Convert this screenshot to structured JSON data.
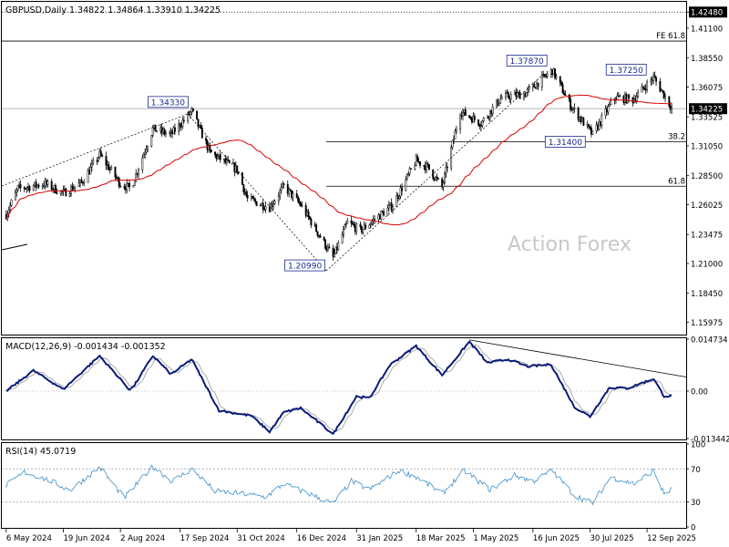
{
  "header": {
    "symbol_line": "GBPUSD,Daily  1.34822 1.34864 1.33910 1.34225"
  },
  "watermark": "Action Forex",
  "colors": {
    "candle": "#000000",
    "ma": "#d90000",
    "macd_main": "#0a1a78",
    "macd_signal": "#999999",
    "rsi": "#3d8fcc",
    "grid_dot": "#bbbbbb"
  },
  "chart_data": [
    {
      "type": "candlestick",
      "title": "GBPUSD,Daily",
      "ohlc_last": {
        "open": 1.34822,
        "high": 1.34864,
        "low": 1.3391,
        "close": 1.34225
      },
      "ylim": [
        1.15,
        1.432
      ],
      "y_ticks": [
        "1.42480",
        "1.41100",
        "1.38550",
        "1.36075",
        "1.33525",
        "1.31050",
        "1.28500",
        "1.26025",
        "1.23475",
        "1.21000",
        "1.18450",
        "1.15975"
      ],
      "current_price": "1.34225",
      "x_ticks": [
        "6 May 2024",
        "19 Jun 2024",
        "2 Aug 2024",
        "17 Sep 2024",
        "31 Oct 2024",
        "16 Dec 2024",
        "31 Jan 2025",
        "18 Mar 2025",
        "1 May 2025",
        "16 Jun 2025",
        "30 Jul 2025",
        "12 Sep 2025"
      ],
      "price_anchors": [
        {
          "date": "2024-05-06",
          "price": 1.252
        },
        {
          "date": "2024-05-15",
          "price": 1.274
        },
        {
          "date": "2024-06-05",
          "price": 1.278
        },
        {
          "date": "2024-06-19",
          "price": 1.27
        },
        {
          "date": "2024-07-03",
          "price": 1.279
        },
        {
          "date": "2024-07-17",
          "price": 1.303
        },
        {
          "date": "2024-08-02",
          "price": 1.278
        },
        {
          "date": "2024-08-10",
          "price": 1.274
        },
        {
          "date": "2024-08-27",
          "price": 1.325
        },
        {
          "date": "2024-09-10",
          "price": 1.32
        },
        {
          "date": "2024-09-26",
          "price": 1.34
        },
        {
          "date": "2024-10-10",
          "price": 1.305
        },
        {
          "date": "2024-10-31",
          "price": 1.29
        },
        {
          "date": "2024-11-08",
          "price": 1.265
        },
        {
          "date": "2024-11-25",
          "price": 1.258
        },
        {
          "date": "2024-12-06",
          "price": 1.276
        },
        {
          "date": "2024-12-19",
          "price": 1.26
        },
        {
          "date": "2025-01-13",
          "price": 1.215
        },
        {
          "date": "2025-01-24",
          "price": 1.245
        },
        {
          "date": "2025-02-03",
          "price": 1.238
        },
        {
          "date": "2025-02-28",
          "price": 1.26
        },
        {
          "date": "2025-03-18",
          "price": 1.298
        },
        {
          "date": "2025-03-27",
          "price": 1.292
        },
        {
          "date": "2025-04-07",
          "price": 1.275
        },
        {
          "date": "2025-04-21",
          "price": 1.34
        },
        {
          "date": "2025-05-07",
          "price": 1.33
        },
        {
          "date": "2025-05-23",
          "price": 1.352
        },
        {
          "date": "2025-06-10",
          "price": 1.355
        },
        {
          "date": "2025-07-01",
          "price": 1.375
        },
        {
          "date": "2025-07-15",
          "price": 1.345
        },
        {
          "date": "2025-08-01",
          "price": 1.32
        },
        {
          "date": "2025-08-18",
          "price": 1.352
        },
        {
          "date": "2025-09-01",
          "price": 1.35
        },
        {
          "date": "2025-09-17",
          "price": 1.369
        },
        {
          "date": "2025-10-01",
          "price": 1.343
        }
      ],
      "annotations": [
        {
          "label": "1.34330",
          "date": "2024-09-26",
          "price": 1.3433
        },
        {
          "label": "1.20990",
          "date": "2025-01-13",
          "price": 1.2099
        },
        {
          "label": "1.37870",
          "date": "2025-07-01",
          "price": 1.3787
        },
        {
          "label": "1.31400",
          "date": "2025-08-01",
          "price": 1.314
        },
        {
          "label": "1.37250",
          "date": "2025-09-17",
          "price": 1.3725
        }
      ],
      "horizontal_levels": [
        {
          "label": "",
          "price": 1.4248,
          "style": "dotted"
        },
        {
          "label": "FE 61.8",
          "price": 1.4,
          "style": "solid"
        },
        {
          "label": "38.2",
          "price": 1.314,
          "style": "solid"
        },
        {
          "label": "61.8",
          "price": 1.276,
          "style": "solid"
        }
      ],
      "ma_label": "",
      "watermark": "Action Forex"
    },
    {
      "type": "line",
      "title": "MACD(12,26,9) -0.001434 -0.001352",
      "ylim": [
        -0.01344,
        0.01473
      ],
      "y_ticks": [
        "0.014734",
        "0.00",
        "-0.013442"
      ],
      "current_value": "0.00",
      "series": [
        {
          "name": "MACD",
          "anchors": [
            {
              "date": "2024-05-06",
              "value": 0.0
            },
            {
              "date": "2024-05-27",
              "value": 0.0058
            },
            {
              "date": "2024-06-19",
              "value": 0.0005
            },
            {
              "date": "2024-07-17",
              "value": 0.01
            },
            {
              "date": "2024-08-10",
              "value": 0.0
            },
            {
              "date": "2024-08-27",
              "value": 0.01
            },
            {
              "date": "2024-09-10",
              "value": 0.0048
            },
            {
              "date": "2024-09-26",
              "value": 0.009
            },
            {
              "date": "2024-10-17",
              "value": -0.0055
            },
            {
              "date": "2024-11-11",
              "value": -0.007
            },
            {
              "date": "2024-11-25",
              "value": -0.0115
            },
            {
              "date": "2024-12-06",
              "value": -0.006
            },
            {
              "date": "2024-12-19",
              "value": -0.0048
            },
            {
              "date": "2025-01-13",
              "value": -0.0122
            },
            {
              "date": "2025-01-31",
              "value": -0.0015
            },
            {
              "date": "2025-02-10",
              "value": -0.002
            },
            {
              "date": "2025-02-26",
              "value": 0.0075
            },
            {
              "date": "2025-03-18",
              "value": 0.0128
            },
            {
              "date": "2025-04-07",
              "value": 0.0045
            },
            {
              "date": "2025-04-28",
              "value": 0.014
            },
            {
              "date": "2025-05-12",
              "value": 0.008
            },
            {
              "date": "2025-05-28",
              "value": 0.009
            },
            {
              "date": "2025-06-12",
              "value": 0.007
            },
            {
              "date": "2025-06-30",
              "value": 0.0075
            },
            {
              "date": "2025-07-18",
              "value": -0.0045
            },
            {
              "date": "2025-07-30",
              "value": -0.0072
            },
            {
              "date": "2025-08-14",
              "value": 0.001
            },
            {
              "date": "2025-08-28",
              "value": 0.0008
            },
            {
              "date": "2025-09-17",
              "value": 0.0035
            },
            {
              "date": "2025-09-25",
              "value": -0.0014
            },
            {
              "date": "2025-10-01",
              "value": -0.0014
            }
          ]
        },
        {
          "name": "Signal",
          "lag_days": 5
        }
      ],
      "trendline": {
        "start": {
          "date": "2025-04-28",
          "value": 0.0145
        },
        "end": {
          "date": "2025-10-04",
          "value": 0.004
        }
      }
    },
    {
      "type": "line",
      "title": "RSI(14) 45.0719",
      "ylim": [
        0,
        100
      ],
      "y_ticks": [
        "100",
        "70",
        "30",
        "0"
      ],
      "levels": [
        70,
        30
      ],
      "series": [
        {
          "name": "RSI",
          "anchors": [
            {
              "date": "2024-05-06",
              "value": 50
            },
            {
              "date": "2024-05-20",
              "value": 66
            },
            {
              "date": "2024-06-10",
              "value": 55
            },
            {
              "date": "2024-06-24",
              "value": 44
            },
            {
              "date": "2024-07-17",
              "value": 72
            },
            {
              "date": "2024-08-05",
              "value": 35
            },
            {
              "date": "2024-08-27",
              "value": 73
            },
            {
              "date": "2024-09-11",
              "value": 55
            },
            {
              "date": "2024-09-26",
              "value": 70
            },
            {
              "date": "2024-10-14",
              "value": 43
            },
            {
              "date": "2024-11-04",
              "value": 40
            },
            {
              "date": "2024-11-22",
              "value": 36
            },
            {
              "date": "2024-12-06",
              "value": 52
            },
            {
              "date": "2024-12-30",
              "value": 37
            },
            {
              "date": "2025-01-13",
              "value": 28
            },
            {
              "date": "2025-01-27",
              "value": 55
            },
            {
              "date": "2025-02-10",
              "value": 45
            },
            {
              "date": "2025-03-05",
              "value": 68
            },
            {
              "date": "2025-03-20",
              "value": 59
            },
            {
              "date": "2025-04-07",
              "value": 40
            },
            {
              "date": "2025-04-24",
              "value": 68
            },
            {
              "date": "2025-05-14",
              "value": 45
            },
            {
              "date": "2025-06-02",
              "value": 62
            },
            {
              "date": "2025-06-16",
              "value": 55
            },
            {
              "date": "2025-07-01",
              "value": 68
            },
            {
              "date": "2025-07-18",
              "value": 38
            },
            {
              "date": "2025-08-01",
              "value": 29
            },
            {
              "date": "2025-08-15",
              "value": 60
            },
            {
              "date": "2025-09-02",
              "value": 52
            },
            {
              "date": "2025-09-17",
              "value": 68
            },
            {
              "date": "2025-09-25",
              "value": 40
            },
            {
              "date": "2025-10-01",
              "value": 45
            }
          ]
        }
      ]
    }
  ]
}
